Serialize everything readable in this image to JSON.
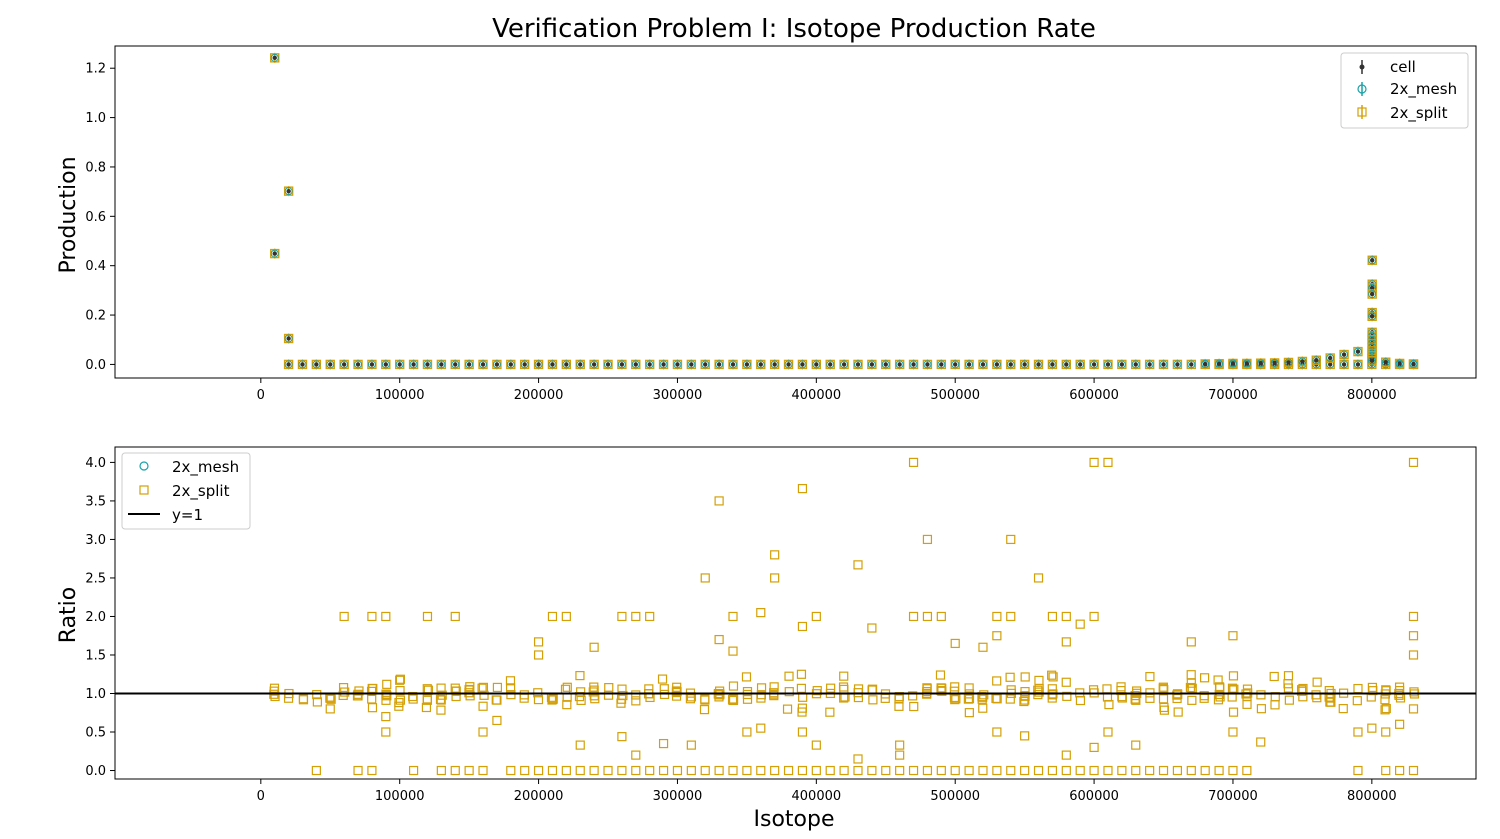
{
  "title": "Verification Problem I: Isotope Production Rate",
  "colors": {
    "cell": "#333333",
    "mesh": "#17a2a8",
    "split": "#d4a008",
    "ref_line": "#000000",
    "axis": "#000000"
  },
  "chart_data": [
    {
      "type": "scatter",
      "panel": "top",
      "ylabel": "Production",
      "xlabel": "",
      "xlim": [
        -105000,
        875000
      ],
      "ylim": [
        -0.055,
        1.29
      ],
      "xticks": [
        0,
        100000,
        200000,
        300000,
        400000,
        500000,
        600000,
        700000,
        800000
      ],
      "xtick_labels": [
        "0",
        "100000",
        "200000",
        "300000",
        "400000",
        "500000",
        "600000",
        "700000",
        "800000"
      ],
      "yticks": [
        0.0,
        0.2,
        0.4,
        0.6,
        0.8,
        1.0,
        1.2
      ],
      "ytick_labels": [
        "0.0",
        "0.2",
        "0.4",
        "0.6",
        "0.8",
        "1.0",
        "1.2"
      ],
      "legend_position": "upper right",
      "series": [
        {
          "name": "cell",
          "marker": "dot-errorbar"
        },
        {
          "name": "2x_mesh",
          "marker": "circle-errorbar"
        },
        {
          "name": "2x_split",
          "marker": "square-errorbar"
        }
      ],
      "points": [
        [
          10020,
          1.242
        ],
        [
          10030,
          0.449
        ],
        [
          20040,
          0.702
        ],
        [
          20030,
          0.105
        ],
        [
          800280,
          0.422
        ],
        [
          800260,
          0.325
        ],
        [
          800250,
          0.31
        ],
        [
          800240,
          0.285
        ],
        [
          800230,
          0.21
        ],
        [
          800220,
          0.195
        ],
        [
          800210,
          0.13
        ],
        [
          800200,
          0.115
        ],
        [
          800190,
          0.1
        ],
        [
          800180,
          0.085
        ],
        [
          800170,
          0.07
        ],
        [
          800160,
          0.055
        ],
        [
          800150,
          0.045
        ],
        [
          800140,
          0.035
        ],
        [
          800130,
          0.025
        ],
        [
          800120,
          0.015
        ],
        [
          790000,
          0.052
        ],
        [
          780000,
          0.04
        ],
        [
          770000,
          0.026
        ],
        [
          760000,
          0.017
        ],
        [
          750000,
          0.012
        ],
        [
          740000,
          0.008
        ],
        [
          730000,
          0.006
        ],
        [
          720000,
          0.005
        ],
        [
          710000,
          0.004
        ],
        [
          700000,
          0.004
        ],
        [
          690000,
          0.003
        ],
        [
          680000,
          0.002
        ],
        [
          810000,
          0.009
        ],
        [
          820000,
          0.004
        ],
        [
          830000,
          0.002
        ]
      ],
      "baseline": {
        "x_start": 20000,
        "x_end": 830000,
        "step": 10000,
        "value": 0.0
      }
    },
    {
      "type": "scatter",
      "panel": "bottom",
      "ylabel": "Ratio",
      "xlabel": "Isotope",
      "xlim": [
        -105000,
        875000
      ],
      "ylim": [
        -0.11,
        4.2
      ],
      "xticks": [
        0,
        100000,
        200000,
        300000,
        400000,
        500000,
        600000,
        700000,
        800000
      ],
      "xtick_labels": [
        "0",
        "100000",
        "200000",
        "300000",
        "400000",
        "500000",
        "600000",
        "700000",
        "800000"
      ],
      "yticks": [
        0.0,
        0.5,
        1.0,
        1.5,
        2.0,
        2.5,
        3.0,
        3.5,
        4.0
      ],
      "ytick_labels": [
        "0.0",
        "0.5",
        "1.0",
        "1.5",
        "2.0",
        "2.5",
        "3.0",
        "3.5",
        "4.0"
      ],
      "legend_position": "upper left",
      "series": [
        {
          "name": "2x_mesh",
          "marker": "circle"
        },
        {
          "name": "2x_split",
          "marker": "square"
        },
        {
          "name": "y=1",
          "marker": "line"
        }
      ],
      "reference_line": 1.0,
      "outliers": [
        [
          470000,
          4.0
        ],
        [
          600000,
          4.0
        ],
        [
          610000,
          4.0
        ],
        [
          830000,
          4.0
        ],
        [
          330000,
          3.5
        ],
        [
          390000,
          3.66
        ],
        [
          480000,
          3.0
        ],
        [
          540000,
          3.0
        ],
        [
          370000,
          2.8
        ],
        [
          320000,
          2.5
        ],
        [
          370000,
          2.5
        ],
        [
          430000,
          2.67
        ],
        [
          560000,
          2.5
        ],
        [
          60000,
          2.0
        ],
        [
          80000,
          2.0
        ],
        [
          90000,
          2.0
        ],
        [
          120000,
          2.0
        ],
        [
          140000,
          2.0
        ],
        [
          210000,
          2.0
        ],
        [
          220000,
          2.0
        ],
        [
          260000,
          2.0
        ],
        [
          270000,
          2.0
        ],
        [
          280000,
          2.0
        ],
        [
          340000,
          2.0
        ],
        [
          360000,
          2.05
        ],
        [
          400000,
          2.0
        ],
        [
          470000,
          2.0
        ],
        [
          480000,
          2.0
        ],
        [
          490000,
          2.0
        ],
        [
          530000,
          2.0
        ],
        [
          540000,
          2.0
        ],
        [
          570000,
          2.0
        ],
        [
          580000,
          2.0
        ],
        [
          600000,
          2.0
        ],
        [
          830000,
          2.0
        ],
        [
          590000,
          1.9
        ],
        [
          390000,
          1.87
        ],
        [
          200000,
          1.67
        ],
        [
          200000,
          1.5
        ],
        [
          240000,
          1.6
        ],
        [
          330000,
          1.7
        ],
        [
          340000,
          1.55
        ],
        [
          500000,
          1.65
        ],
        [
          520000,
          1.6
        ],
        [
          530000,
          1.75
        ],
        [
          580000,
          1.67
        ],
        [
          670000,
          1.67
        ],
        [
          700000,
          1.75
        ],
        [
          830000,
          1.75
        ],
        [
          830000,
          1.5
        ],
        [
          440000,
          1.85
        ],
        [
          90000,
          0.7
        ],
        [
          90000,
          0.5
        ],
        [
          160000,
          0.5
        ],
        [
          170000,
          0.65
        ],
        [
          230000,
          0.33
        ],
        [
          260000,
          0.44
        ],
        [
          270000,
          0.2
        ],
        [
          290000,
          0.35
        ],
        [
          310000,
          0.33
        ],
        [
          350000,
          0.5
        ],
        [
          360000,
          0.55
        ],
        [
          390000,
          0.5
        ],
        [
          400000,
          0.33
        ],
        [
          430000,
          0.15
        ],
        [
          460000,
          0.33
        ],
        [
          460000,
          0.2
        ],
        [
          530000,
          0.5
        ],
        [
          550000,
          0.45
        ],
        [
          580000,
          0.2
        ],
        [
          600000,
          0.3
        ],
        [
          610000,
          0.5
        ],
        [
          630000,
          0.33
        ],
        [
          700000,
          0.5
        ],
        [
          720000,
          0.37
        ],
        [
          790000,
          0.5
        ],
        [
          800000,
          0.55
        ],
        [
          810000,
          0.5
        ],
        [
          820000,
          0.6
        ],
        [
          830000,
          0.8
        ],
        [
          50000,
          0.8
        ]
      ],
      "zeros_x": [
        40000,
        70000,
        80000,
        110000,
        130000,
        140000,
        150000,
        160000,
        180000,
        190000,
        200000,
        210000,
        220000,
        230000,
        240000,
        250000,
        260000,
        270000,
        280000,
        290000,
        300000,
        310000,
        320000,
        330000,
        340000,
        350000,
        360000,
        370000,
        380000,
        390000,
        400000,
        410000,
        420000,
        430000,
        440000,
        450000,
        460000,
        470000,
        480000,
        490000,
        500000,
        510000,
        520000,
        530000,
        540000,
        550000,
        560000,
        570000,
        580000,
        590000,
        600000,
        610000,
        620000,
        630000,
        640000,
        650000,
        660000,
        670000,
        680000,
        690000,
        700000,
        710000,
        790000,
        810000,
        820000,
        830000
      ],
      "cluster": {
        "x_start": 10000,
        "x_end": 830000,
        "step": 10000,
        "center": 1.0
      }
    }
  ]
}
